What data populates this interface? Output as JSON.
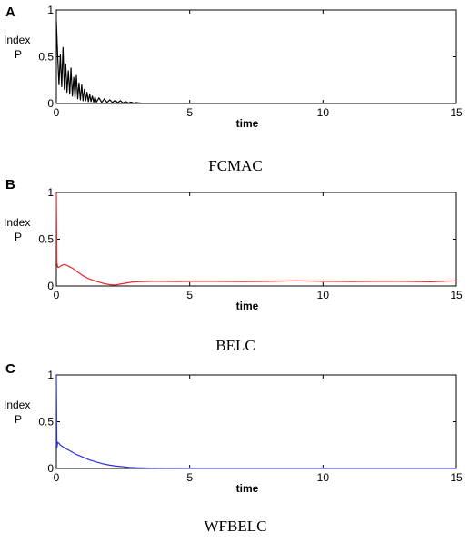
{
  "chart_data": [
    {
      "type": "line",
      "panel_label": "A",
      "caption": "FCMAC",
      "xlabel": "time",
      "ylabel": [
        "Index",
        "P"
      ],
      "xlim": [
        0,
        15
      ],
      "ylim": [
        0,
        1
      ],
      "x_ticks": [
        0,
        5,
        10,
        15
      ],
      "y_ticks": [
        0,
        0.5,
        1
      ],
      "grid": false,
      "series": [
        {
          "color": "#000000",
          "x": [
            0,
            0.05,
            0.1,
            0.15,
            0.2,
            0.25,
            0.3,
            0.35,
            0.4,
            0.45,
            0.5,
            0.55,
            0.6,
            0.65,
            0.7,
            0.75,
            0.8,
            0.85,
            0.9,
            0.95,
            1.0,
            1.05,
            1.1,
            1.15,
            1.2,
            1.25,
            1.3,
            1.35,
            1.4,
            1.45,
            1.5,
            1.6,
            1.7,
            1.8,
            1.9,
            2.0,
            2.1,
            2.2,
            2.3,
            2.4,
            2.5,
            2.6,
            2.7,
            2.8,
            2.9,
            3.0,
            3.2,
            3.5,
            4.0,
            5.0,
            6.0,
            8.0,
            10.0,
            12.0,
            15.0
          ],
          "y": [
            0.88,
            0.5,
            0.2,
            0.52,
            0.18,
            0.6,
            0.15,
            0.42,
            0.12,
            0.35,
            0.1,
            0.38,
            0.08,
            0.28,
            0.06,
            0.3,
            0.05,
            0.22,
            0.04,
            0.2,
            0.03,
            0.15,
            0.03,
            0.12,
            0.02,
            0.1,
            0.02,
            0.08,
            0.015,
            0.07,
            0.015,
            0.06,
            0.012,
            0.05,
            0.01,
            0.04,
            0.01,
            0.035,
            0.008,
            0.03,
            0.006,
            0.02,
            0.005,
            0.015,
            0.004,
            0.01,
            0.003,
            0.002,
            0.002,
            0.002,
            0.002,
            0.002,
            0.002,
            0.002,
            0.002
          ]
        }
      ]
    },
    {
      "type": "line",
      "panel_label": "B",
      "caption": "BELC",
      "xlabel": "time",
      "ylabel": [
        "Index",
        "P"
      ],
      "xlim": [
        0,
        15
      ],
      "ylim": [
        0,
        1
      ],
      "x_ticks": [
        0,
        5,
        10,
        15
      ],
      "y_ticks": [
        0,
        0.5,
        1
      ],
      "grid": false,
      "series": [
        {
          "color": "#e8262c",
          "x": [
            0,
            0.02,
            0.05,
            0.1,
            0.2,
            0.3,
            0.4,
            0.6,
            0.8,
            1.0,
            1.2,
            1.5,
            1.8,
            2.0,
            2.2,
            2.4,
            2.6,
            2.8,
            3.0,
            3.5,
            4.0,
            4.5,
            5.0,
            6.0,
            7.0,
            8.0,
            9.0,
            10.0,
            11.0,
            12.0,
            13.0,
            14.0,
            15.0
          ],
          "y": [
            1.0,
            0.25,
            0.2,
            0.2,
            0.22,
            0.23,
            0.22,
            0.19,
            0.15,
            0.11,
            0.08,
            0.05,
            0.025,
            0.015,
            0.01,
            0.02,
            0.03,
            0.04,
            0.045,
            0.05,
            0.05,
            0.048,
            0.05,
            0.05,
            0.048,
            0.05,
            0.055,
            0.05,
            0.048,
            0.05,
            0.05,
            0.045,
            0.055
          ]
        }
      ]
    },
    {
      "type": "line",
      "panel_label": "C",
      "caption": "WFBELC",
      "xlabel": "time",
      "ylabel": [
        "Index",
        "P"
      ],
      "xlim": [
        0,
        15
      ],
      "ylim": [
        0,
        1
      ],
      "x_ticks": [
        0,
        5,
        10,
        15
      ],
      "y_ticks": [
        0,
        0.5,
        1
      ],
      "grid": false,
      "series": [
        {
          "color": "#2e2ee0",
          "x": [
            0,
            0.02,
            0.05,
            0.1,
            0.15,
            0.2,
            0.3,
            0.5,
            0.75,
            1.0,
            1.25,
            1.5,
            1.75,
            2.0,
            2.25,
            2.5,
            2.75,
            3.0,
            3.5,
            4.0,
            5.0,
            6.0,
            8.0,
            10.0,
            12.0,
            15.0
          ],
          "y": [
            1.0,
            0.22,
            0.28,
            0.27,
            0.25,
            0.24,
            0.22,
            0.19,
            0.15,
            0.12,
            0.09,
            0.07,
            0.05,
            0.035,
            0.025,
            0.018,
            0.012,
            0.008,
            0.004,
            0.002,
            0.001,
            0.001,
            0.001,
            0.001,
            0.001,
            0.001
          ]
        }
      ]
    }
  ]
}
